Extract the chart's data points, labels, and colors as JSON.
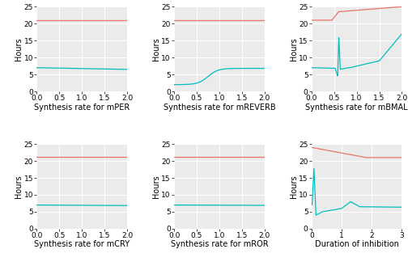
{
  "red_color": "#E8746A",
  "cyan_color": "#00BEBE",
  "background_color": "#FFFFFF",
  "grid_color": "#E8E8E8",
  "tick_fontsize": 6.5,
  "label_fontsize": 7,
  "ylabel": "Hours",
  "subplots": [
    {
      "xlabel": "Synthesis rate for mPER",
      "xmin": 0.0,
      "xmax": 2.0,
      "ymin": 0,
      "ymax": 25,
      "yticks": [
        0,
        5,
        10,
        15,
        20,
        25
      ],
      "xticks": [
        0.0,
        0.5,
        1.0,
        1.5,
        2.0
      ],
      "type": "per"
    },
    {
      "xlabel": "Synthesis rate for mREVERB",
      "xmin": 0.0,
      "xmax": 2.0,
      "ymin": 0,
      "ymax": 25,
      "yticks": [
        0,
        5,
        10,
        15,
        20,
        25
      ],
      "xticks": [
        0.0,
        0.5,
        1.0,
        1.5,
        2.0
      ],
      "type": "reverb"
    },
    {
      "xlabel": "Synthesis rate for mBMAL",
      "xmin": 0.0,
      "xmax": 2.0,
      "ymin": 0,
      "ymax": 25,
      "yticks": [
        0,
        5,
        10,
        15,
        20,
        25
      ],
      "xticks": [
        0.0,
        0.5,
        1.0,
        1.5,
        2.0
      ],
      "type": "bmal"
    },
    {
      "xlabel": "Synthesis rate for mCRY",
      "xmin": 0.0,
      "xmax": 2.0,
      "ymin": 0,
      "ymax": 25,
      "yticks": [
        0,
        5,
        10,
        15,
        20,
        25
      ],
      "xticks": [
        0.0,
        0.5,
        1.0,
        1.5,
        2.0
      ],
      "type": "cry"
    },
    {
      "xlabel": "Synthesis rate for mROR",
      "xmin": 0.0,
      "xmax": 2.0,
      "ymin": 0,
      "ymax": 25,
      "yticks": [
        0,
        5,
        10,
        15,
        20,
        25
      ],
      "xticks": [
        0.0,
        0.5,
        1.0,
        1.5,
        2.0
      ],
      "type": "ror"
    },
    {
      "xlabel": "Duration of inhibition",
      "xmin": 0.0,
      "xmax": 3.0,
      "ymin": 0,
      "ymax": 25,
      "yticks": [
        0,
        5,
        10,
        15,
        20,
        25
      ],
      "xticks": [
        0,
        1,
        2,
        3
      ],
      "type": "inhibition"
    }
  ]
}
